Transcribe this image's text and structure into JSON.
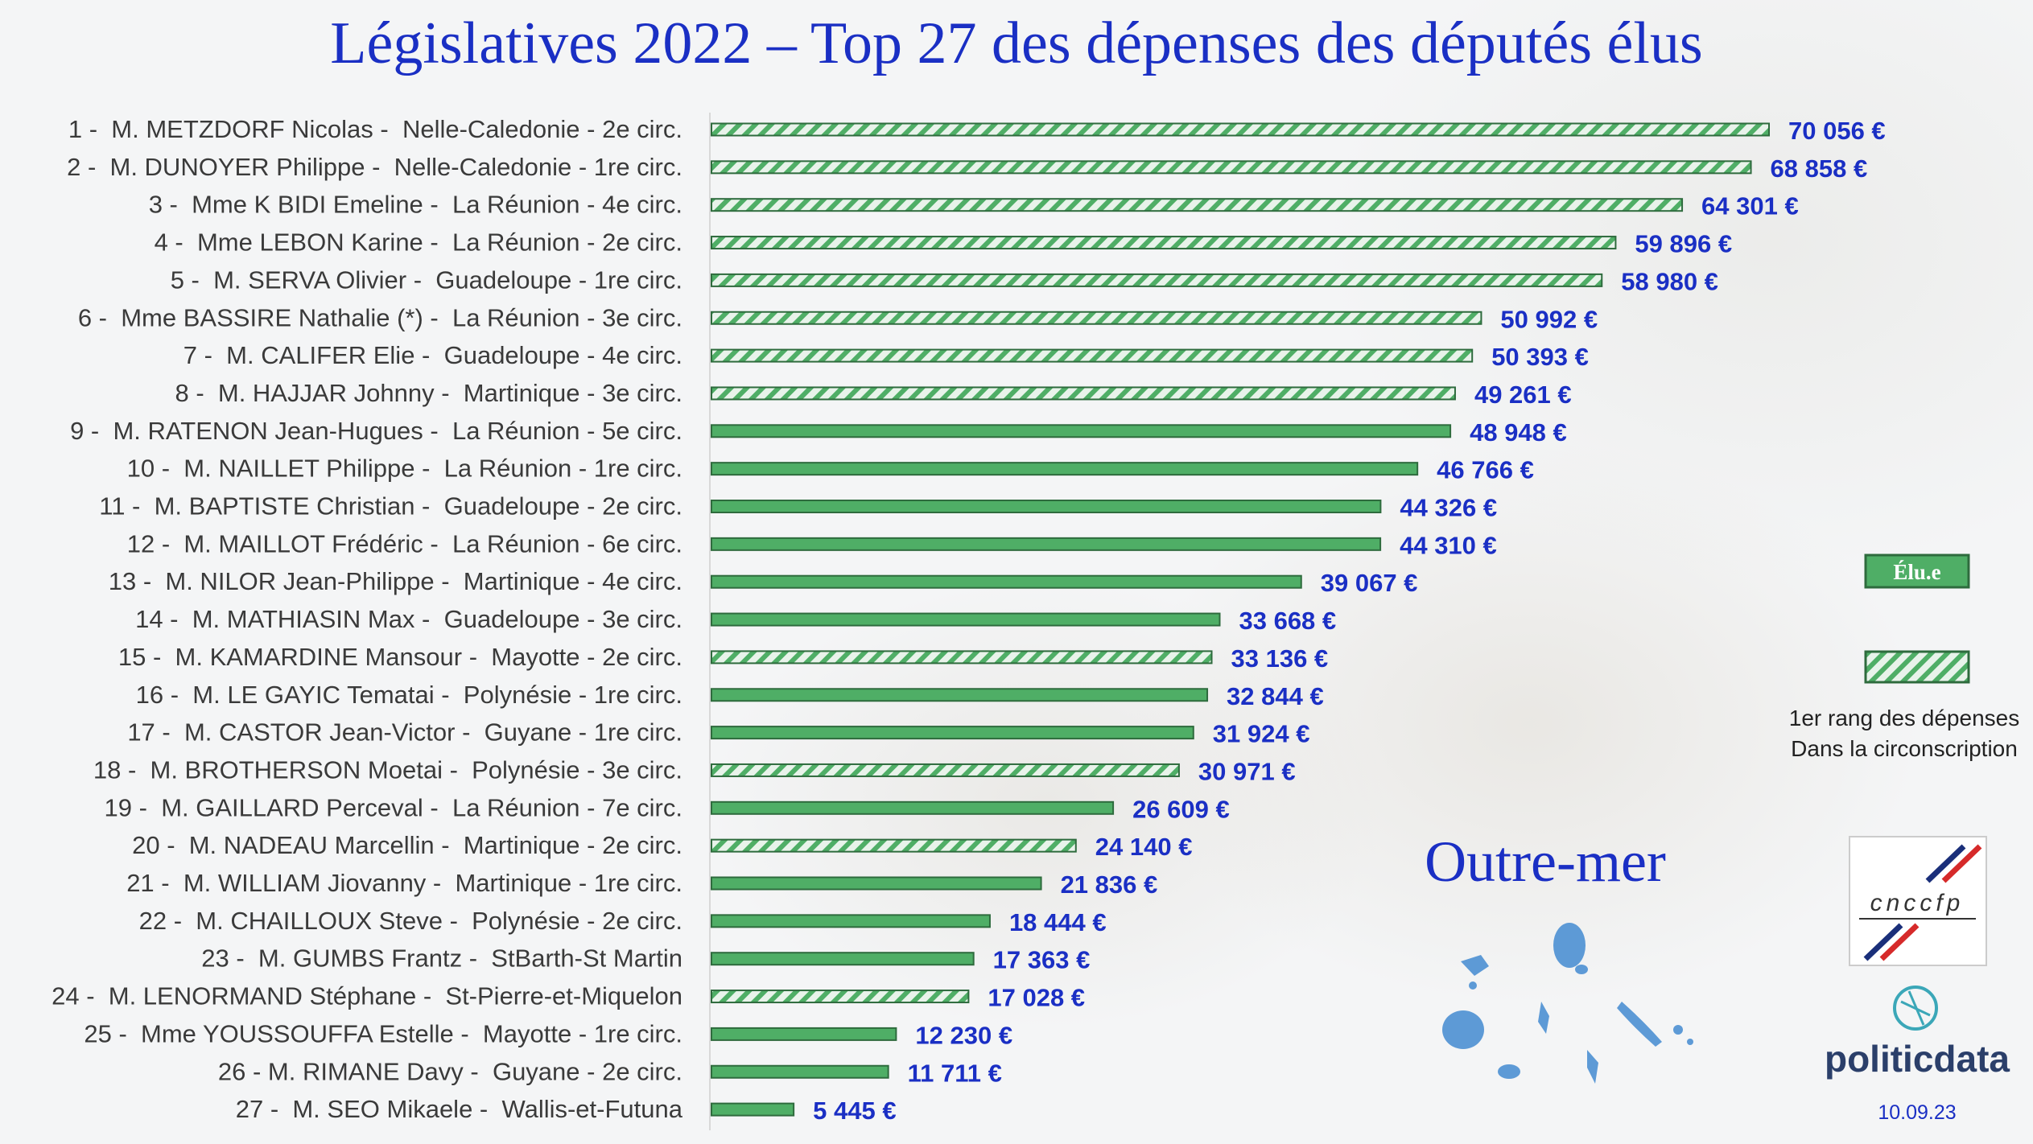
{
  "title": "Législatives 2022 – Top 27 des dépenses des députés élus",
  "region": "Outre-mer",
  "date": "10.09.23",
  "legend": {
    "elu_label": "Élu.e",
    "hatched_line1": "1er rang des dépenses",
    "hatched_line2": "Dans la circonscription"
  },
  "logos": {
    "cnccfp": "cnccfp",
    "politicdata": "politicdata"
  },
  "colors": {
    "bar_green": "#4fae66",
    "bar_border": "#2e6b3d",
    "value_blue": "#1a2fc4",
    "hatch_light": "#e8f3ea"
  },
  "chart_data": {
    "type": "bar",
    "orientation": "horizontal",
    "title": "Législatives 2022 – Top 27 des dépenses des députés élus",
    "xlim": [
      0,
      70056
    ],
    "unit": "€",
    "categories": [
      "1 -  M. METZDORF Nicolas -  Nelle-Caledonie - 2e circ.",
      "2 -  M. DUNOYER Philippe -  Nelle-Caledonie - 1re circ.",
      "3 -  Mme K BIDI Emeline -  La Réunion - 4e circ.",
      "4 -  Mme LEBON Karine -  La Réunion - 2e circ.",
      "5 -  M. SERVA Olivier -  Guadeloupe - 1re circ.",
      "6 -  Mme BASSIRE Nathalie (*) -  La Réunion - 3e circ.",
      "7 -  M. CALIFER Elie -  Guadeloupe - 4e circ.",
      "8 -  M. HAJJAR Johnny -  Martinique - 3e circ.",
      "9 -  M. RATENON Jean-Hugues -  La Réunion - 5e circ.",
      "10 -  M. NAILLET Philippe -  La Réunion - 1re circ.",
      "11 -  M. BAPTISTE Christian -  Guadeloupe - 2e circ.",
      "12 -  M. MAILLOT Frédéric -  La Réunion - 6e circ.",
      "13 -  M. NILOR Jean-Philippe -  Martinique - 4e circ.",
      "14 -  M. MATHIASIN Max -  Guadeloupe - 3e circ.",
      "15 -  M. KAMARDINE Mansour -  Mayotte - 2e circ.",
      "16 -  M. LE GAYIC Tematai -  Polynésie - 1re circ.",
      "17 -  M. CASTOR Jean-Victor -  Guyane - 1re circ.",
      "18 -  M. BROTHERSON Moetai -  Polynésie - 3e circ.",
      "19 -  M. GAILLARD Perceval -  La Réunion - 7e circ.",
      "20 -  M. NADEAU Marcellin -  Martinique - 2e circ.",
      "21 -  M. WILLIAM Jiovanny -  Martinique - 1re circ.",
      "22 -  M. CHAILLOUX Steve -  Polynésie - 2e circ.",
      "23 -  M. GUMBS Frantz -  StBarth-St Martin",
      "24 -  M. LENORMAND Stéphane -  St-Pierre-et-Miquelon",
      "25 -  Mme YOUSSOUFFA Estelle -  Mayotte - 1re circ.",
      "26 - M. RIMANE Davy -  Guyane - 2e circ.",
      "27 -  M. SEO Mikaele -  Wallis-et-Futuna"
    ],
    "values": [
      70056,
      68858,
      64301,
      59896,
      58980,
      50992,
      50393,
      49261,
      48948,
      46766,
      44326,
      44310,
      39067,
      33668,
      33136,
      32844,
      31924,
      30971,
      26609,
      24140,
      21836,
      18444,
      17363,
      17028,
      12230,
      11711,
      5445
    ],
    "value_labels": [
      "70 056 €",
      "68 858 €",
      "64 301 €",
      "59 896 €",
      "58 980 €",
      "50 992 €",
      "50 393 €",
      "49 261 €",
      "48 948 €",
      "46 766 €",
      "44 326 €",
      "44 310 €",
      "39 067 €",
      "33 668 €",
      "33 136 €",
      "32 844 €",
      "31 924 €",
      "30 971 €",
      "26 609 €",
      "24 140 €",
      "21 836 €",
      "18 444 €",
      "17 363 €",
      "17 028 €",
      "12 230 €",
      "11 711 €",
      "5 445 €"
    ],
    "first_rank_in_circ": [
      true,
      true,
      true,
      true,
      true,
      true,
      true,
      true,
      false,
      false,
      false,
      false,
      false,
      false,
      true,
      false,
      false,
      true,
      false,
      true,
      false,
      false,
      false,
      true,
      false,
      false,
      false
    ],
    "legend": [
      "Élu.e",
      "1er rang des dépenses Dans la circonscription"
    ],
    "legend_position": "right"
  }
}
